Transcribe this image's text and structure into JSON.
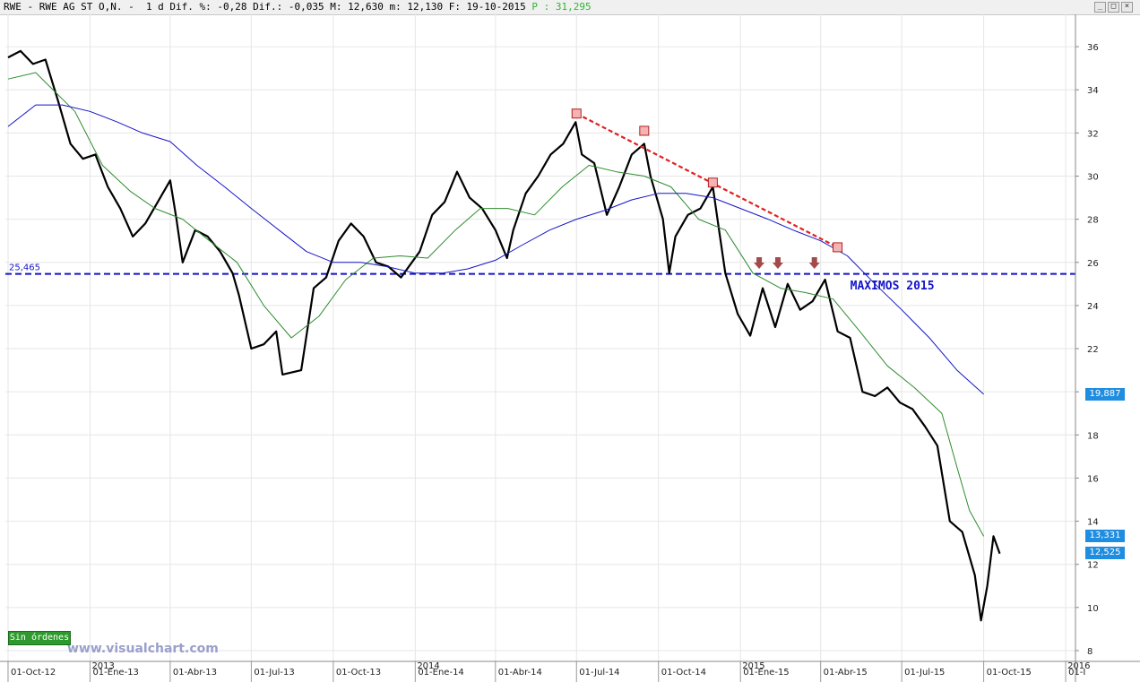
{
  "header": {
    "text": "RWE - RWE AG ST O,N. -  1 d Dif. %: -0,28 Dif.: -0,035 M: 12,630 m: 12,130 F: 19-10-2015 ",
    "p_text": "P : 31,295"
  },
  "window_buttons": [
    "_",
    "□",
    "×"
  ],
  "status": {
    "orders_label": "Sin órdenes"
  },
  "watermark": "www.visualchart.com",
  "chart_data": {
    "type": "line",
    "title": "RWE AG ST O,N.",
    "ylim": [
      7.5,
      37.5
    ],
    "y_ticks": [
      8,
      10,
      12,
      14,
      16,
      18,
      20,
      22,
      24,
      26,
      28,
      30,
      32,
      34,
      36
    ],
    "x_range": [
      "2012-09-28",
      "2016-01-12"
    ],
    "x_ticks": [
      {
        "date": "2012-10-01",
        "label": "01-Oct-12"
      },
      {
        "date": "2013-01-01",
        "label": "01-Ene-13"
      },
      {
        "date": "2013-04-01",
        "label": "01-Abr-13"
      },
      {
        "date": "2013-07-01",
        "label": "01-Jul-13"
      },
      {
        "date": "2013-10-01",
        "label": "01-Oct-13"
      },
      {
        "date": "2014-01-01",
        "label": "01-Ene-14"
      },
      {
        "date": "2014-04-01",
        "label": "01-Abr-14"
      },
      {
        "date": "2014-07-01",
        "label": "01-Jul-14"
      },
      {
        "date": "2014-10-01",
        "label": "01-Oct-14"
      },
      {
        "date": "2015-01-01",
        "label": "01-Ene-15"
      },
      {
        "date": "2015-04-01",
        "label": "01-Abr-15"
      },
      {
        "date": "2015-07-01",
        "label": "01-Jul-15"
      },
      {
        "date": "2015-10-01",
        "label": "01-Oct-15"
      },
      {
        "date": "2016-01-01",
        "label": "01-I"
      }
    ],
    "year_markers": [
      {
        "date": "2013-01-01",
        "label": "2013"
      },
      {
        "date": "2014-01-01",
        "label": "2014"
      },
      {
        "date": "2015-01-01",
        "label": "2015"
      },
      {
        "date": "2016-01-01",
        "label": "2016"
      }
    ],
    "series": [
      {
        "color": "#000000",
        "style": "price",
        "points": [
          [
            "2012-10-01",
            35.5
          ],
          [
            "2012-10-15",
            35.8
          ],
          [
            "2012-10-29",
            35.2
          ],
          [
            "2012-11-12",
            35.4
          ],
          [
            "2012-11-26",
            33.5
          ],
          [
            "2012-12-10",
            31.5
          ],
          [
            "2012-12-24",
            30.8
          ],
          [
            "2013-01-07",
            31.0
          ],
          [
            "2013-01-21",
            29.5
          ],
          [
            "2013-02-04",
            28.5
          ],
          [
            "2013-02-18",
            27.2
          ],
          [
            "2013-03-04",
            27.8
          ],
          [
            "2013-03-18",
            28.8
          ],
          [
            "2013-04-01",
            29.8
          ],
          [
            "2013-04-08",
            28.0
          ],
          [
            "2013-04-15",
            26.0
          ],
          [
            "2013-04-29",
            27.5
          ],
          [
            "2013-05-13",
            27.2
          ],
          [
            "2013-05-27",
            26.5
          ],
          [
            "2013-06-10",
            25.5
          ],
          [
            "2013-06-17",
            24.5
          ],
          [
            "2013-07-01",
            22.0
          ],
          [
            "2013-07-15",
            22.2
          ],
          [
            "2013-07-29",
            22.8
          ],
          [
            "2013-08-05",
            20.8
          ],
          [
            "2013-08-26",
            21.0
          ],
          [
            "2013-09-09",
            24.8
          ],
          [
            "2013-09-23",
            25.3
          ],
          [
            "2013-10-07",
            27.0
          ],
          [
            "2013-10-21",
            27.8
          ],
          [
            "2013-11-04",
            27.2
          ],
          [
            "2013-11-18",
            26.0
          ],
          [
            "2013-12-02",
            25.8
          ],
          [
            "2013-12-16",
            25.3
          ],
          [
            "2014-01-06",
            26.5
          ],
          [
            "2014-01-20",
            28.2
          ],
          [
            "2014-02-03",
            28.8
          ],
          [
            "2014-02-17",
            30.2
          ],
          [
            "2014-03-03",
            29.0
          ],
          [
            "2014-03-17",
            28.5
          ],
          [
            "2014-04-01",
            27.5
          ],
          [
            "2014-04-14",
            26.2
          ],
          [
            "2014-04-21",
            27.5
          ],
          [
            "2014-05-05",
            29.2
          ],
          [
            "2014-05-19",
            30.0
          ],
          [
            "2014-06-02",
            31.0
          ],
          [
            "2014-06-16",
            31.5
          ],
          [
            "2014-06-30",
            32.5
          ],
          [
            "2014-07-07",
            31.0
          ],
          [
            "2014-07-21",
            30.6
          ],
          [
            "2014-08-04",
            28.2
          ],
          [
            "2014-08-18",
            29.5
          ],
          [
            "2014-09-01",
            31.0
          ],
          [
            "2014-09-15",
            31.5
          ],
          [
            "2014-09-22",
            30.0
          ],
          [
            "2014-10-06",
            28.0
          ],
          [
            "2014-10-13",
            25.5
          ],
          [
            "2014-10-20",
            27.2
          ],
          [
            "2014-11-03",
            28.2
          ],
          [
            "2014-11-17",
            28.5
          ],
          [
            "2014-12-01",
            29.5
          ],
          [
            "2014-12-08",
            27.5
          ],
          [
            "2014-12-15",
            25.5
          ],
          [
            "2014-12-29",
            23.6
          ],
          [
            "2015-01-12",
            22.6
          ],
          [
            "2015-01-26",
            24.8
          ],
          [
            "2015-02-09",
            23.0
          ],
          [
            "2015-02-23",
            25.0
          ],
          [
            "2015-03-09",
            23.8
          ],
          [
            "2015-03-23",
            24.2
          ],
          [
            "2015-04-06",
            25.2
          ],
          [
            "2015-04-20",
            22.8
          ],
          [
            "2015-05-04",
            22.5
          ],
          [
            "2015-05-18",
            20.0
          ],
          [
            "2015-06-01",
            19.8
          ],
          [
            "2015-06-15",
            20.2
          ],
          [
            "2015-06-29",
            19.5
          ],
          [
            "2015-07-13",
            19.2
          ],
          [
            "2015-07-27",
            18.4
          ],
          [
            "2015-08-10",
            17.5
          ],
          [
            "2015-08-24",
            14.0
          ],
          [
            "2015-09-07",
            13.5
          ],
          [
            "2015-09-21",
            11.5
          ],
          [
            "2015-09-28",
            9.4
          ],
          [
            "2015-10-05",
            11.0
          ],
          [
            "2015-10-12",
            13.3
          ],
          [
            "2015-10-19",
            12.5
          ]
        ]
      },
      {
        "color": "#2e8b2e",
        "style": "moving-average",
        "points": [
          [
            "2012-10-01",
            34.5
          ],
          [
            "2012-11-01",
            34.8
          ],
          [
            "2012-12-15",
            33.0
          ],
          [
            "2013-01-15",
            30.5
          ],
          [
            "2013-02-15",
            29.3
          ],
          [
            "2013-03-15",
            28.5
          ],
          [
            "2013-04-15",
            28.0
          ],
          [
            "2013-05-15",
            27.0
          ],
          [
            "2013-06-15",
            26.0
          ],
          [
            "2013-07-15",
            24.0
          ],
          [
            "2013-08-15",
            22.5
          ],
          [
            "2013-09-15",
            23.5
          ],
          [
            "2013-10-15",
            25.2
          ],
          [
            "2013-11-15",
            26.2
          ],
          [
            "2013-12-15",
            26.3
          ],
          [
            "2014-01-15",
            26.2
          ],
          [
            "2014-02-15",
            27.5
          ],
          [
            "2014-03-15",
            28.5
          ],
          [
            "2014-04-15",
            28.5
          ],
          [
            "2014-05-15",
            28.2
          ],
          [
            "2014-06-15",
            29.5
          ],
          [
            "2014-07-15",
            30.5
          ],
          [
            "2014-08-15",
            30.2
          ],
          [
            "2014-09-15",
            30.0
          ],
          [
            "2014-10-15",
            29.5
          ],
          [
            "2014-11-15",
            28.0
          ],
          [
            "2014-12-15",
            27.5
          ],
          [
            "2015-01-15",
            25.5
          ],
          [
            "2015-02-15",
            24.8
          ],
          [
            "2015-03-15",
            24.6
          ],
          [
            "2015-04-15",
            24.3
          ],
          [
            "2015-05-15",
            22.8
          ],
          [
            "2015-06-15",
            21.2
          ],
          [
            "2015-07-15",
            20.2
          ],
          [
            "2015-08-15",
            19.0
          ],
          [
            "2015-09-01",
            16.5
          ],
          [
            "2015-09-15",
            14.5
          ],
          [
            "2015-10-01",
            13.3
          ]
        ]
      },
      {
        "color": "#1414c8",
        "style": "moving-average",
        "points": [
          [
            "2012-10-01",
            32.3
          ],
          [
            "2012-11-01",
            33.3
          ],
          [
            "2012-12-01",
            33.3
          ],
          [
            "2013-01-01",
            33.0
          ],
          [
            "2013-02-01",
            32.5
          ],
          [
            "2013-03-01",
            32.0
          ],
          [
            "2013-04-01",
            31.6
          ],
          [
            "2013-05-01",
            30.5
          ],
          [
            "2013-06-01",
            29.5
          ],
          [
            "2013-07-01",
            28.5
          ],
          [
            "2013-08-01",
            27.5
          ],
          [
            "2013-09-01",
            26.5
          ],
          [
            "2013-10-01",
            26.0
          ],
          [
            "2013-11-01",
            26.0
          ],
          [
            "2013-12-01",
            25.8
          ],
          [
            "2014-01-01",
            25.5
          ],
          [
            "2014-02-01",
            25.5
          ],
          [
            "2014-03-01",
            25.7
          ],
          [
            "2014-04-01",
            26.1
          ],
          [
            "2014-05-01",
            26.8
          ],
          [
            "2014-06-01",
            27.5
          ],
          [
            "2014-07-01",
            28.0
          ],
          [
            "2014-08-01",
            28.4
          ],
          [
            "2014-09-01",
            28.9
          ],
          [
            "2014-10-01",
            29.2
          ],
          [
            "2014-11-01",
            29.2
          ],
          [
            "2014-12-01",
            29.0
          ],
          [
            "2015-01-01",
            28.5
          ],
          [
            "2015-02-01",
            28.0
          ],
          [
            "2015-03-01",
            27.5
          ],
          [
            "2015-04-01",
            27.0
          ],
          [
            "2015-05-01",
            26.3
          ],
          [
            "2015-06-01",
            25.0
          ],
          [
            "2015-07-01",
            23.8
          ],
          [
            "2015-08-01",
            22.5
          ],
          [
            "2015-09-01",
            21.0
          ],
          [
            "2015-10-01",
            19.887
          ]
        ]
      }
    ],
    "horizontal_line": {
      "value": 25.465,
      "label": "25,465",
      "color": "#1414c8"
    },
    "trendline": {
      "color": "#e02020",
      "points": [
        [
          "2014-07-01",
          32.9
        ],
        [
          "2015-04-20",
          26.7
        ]
      ]
    },
    "resistance_markers": [
      {
        "date": "2014-07-01",
        "value": 32.9
      },
      {
        "date": "2014-09-15",
        "value": 32.1
      },
      {
        "date": "2014-12-01",
        "value": 29.7
      },
      {
        "date": "2015-04-20",
        "value": 26.7
      }
    ],
    "arrow_markers": [
      {
        "date": "2015-01-22",
        "value": 25.7
      },
      {
        "date": "2015-02-12",
        "value": 25.7
      },
      {
        "date": "2015-03-25",
        "value": 25.7
      }
    ],
    "annotation": {
      "text": "MAXIMOS 2015",
      "date": "2015-04-06",
      "value": 24.9,
      "color": "#1414c8"
    },
    "price_labels": [
      {
        "label": "19,887",
        "value": 19.887
      },
      {
        "label": "13,331",
        "value": 13.331
      },
      {
        "label": "12,525",
        "value": 12.525
      }
    ]
  }
}
